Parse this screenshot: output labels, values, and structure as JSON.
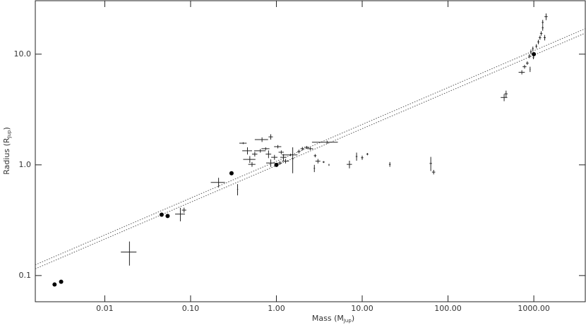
{
  "chart_data": {
    "type": "errorbar-scatter",
    "log_x": true,
    "log_y": true,
    "x_label": {
      "text": "Mass  (M",
      "sub": "Jup",
      "end": ")"
    },
    "y_label": {
      "text": "Radius  (R",
      "sub": "Jup",
      "end": ")"
    },
    "xlim": [
      0.00155,
      3980
    ],
    "ylim": [
      0.058,
      30.4
    ],
    "xticks": [
      {
        "value": 0.01,
        "label": "0.01"
      },
      {
        "value": 0.1,
        "label": "0.10"
      },
      {
        "value": 1,
        "label": "1.00"
      },
      {
        "value": 10,
        "label": "10.00"
      },
      {
        "value": 100,
        "label": "100.00"
      },
      {
        "value": 1000,
        "label": "1000.00"
      }
    ],
    "yticks": [
      {
        "value": 0.1,
        "label": "0.1"
      },
      {
        "value": 1,
        "label": "1.0"
      },
      {
        "value": 10,
        "label": "10.0"
      }
    ],
    "color": "#222222",
    "points": {
      "x": [
        0.0194,
        0.212,
        0.353,
        0.076,
        0.084,
        0.41,
        0.68,
        0.86,
        0.46,
        0.56,
        0.49,
        0.52,
        0.65,
        0.75,
        0.81,
        0.86,
        0.95,
        1.04,
        1.14,
        1.21,
        1.28,
        1.1,
        1.46,
        1.55,
        1.83,
        2.01,
        2.26,
        2.48,
        2.77,
        2.83,
        3.05,
        3.55,
        3.9,
        4.1,
        7.1,
        8.6,
        10.0,
        11.5,
        21,
        63,
        68,
        451,
        475,
        725,
        780,
        840,
        890,
        925,
        975,
        1070,
        1130,
        1180,
        1220,
        1270,
        1270,
        1340,
        1390,
        905,
        990
      ],
      "y": [
        0.163,
        0.694,
        0.6,
        0.359,
        0.39,
        1.57,
        1.69,
        1.79,
        1.34,
        1.25,
        1.12,
        1.01,
        1.34,
        1.4,
        1.25,
        1.04,
        1.17,
        1.46,
        1.3,
        1.17,
        1.08,
        1.04,
        1.23,
        1.14,
        1.32,
        1.4,
        1.44,
        1.4,
        0.93,
        1.21,
        1.08,
        1.06,
        1.6,
        1.0,
        1.01,
        1.19,
        1.16,
        1.25,
        1.01,
        1.03,
        0.86,
        4.06,
        4.38,
        6.86,
        7.7,
        8.3,
        9.6,
        10.5,
        11.2,
        11.8,
        12.9,
        14.1,
        15.4,
        17.3,
        19.4,
        14.1,
        21.8,
        7.3,
        9.3
      ],
      "xerr": [
        0.004,
        0.04,
        0.005,
        0.01,
        0.005,
        0.04,
        0.12,
        0.05,
        0.06,
        0.04,
        0.08,
        0.05,
        0.1,
        0.08,
        0.06,
        0.1,
        0.08,
        0.1,
        0.08,
        0.1,
        0.12,
        0.06,
        0.3,
        0.05,
        0.08,
        0.1,
        0.15,
        0.2,
        0.05,
        0.1,
        0.2,
        0.1,
        1.3,
        0.05,
        0.5,
        0.2,
        0.3,
        0.3,
        0.5,
        2,
        3,
        40,
        20,
        60,
        40,
        30,
        30,
        20,
        20,
        25,
        30,
        40,
        40,
        30,
        30,
        40,
        60,
        10,
        20
      ],
      "yerr": [
        0.04,
        0.07,
        0.07,
        0.05,
        0.02,
        0.03,
        0.08,
        0.1,
        0.1,
        0.06,
        0.08,
        0.05,
        0.05,
        0.04,
        0.1,
        0.08,
        0.06,
        0.05,
        0.05,
        0.08,
        0.05,
        0.04,
        0.03,
        0.3,
        0.05,
        0.05,
        0.04,
        0.04,
        0.07,
        0.04,
        0.05,
        0.02,
        0.05,
        0.02,
        0.08,
        0.1,
        0.05,
        0.03,
        0.05,
        0.15,
        0.04,
        0.3,
        0.3,
        0.3,
        0.3,
        0.3,
        0.4,
        0.5,
        0.5,
        0.5,
        0.6,
        0.6,
        0.7,
        1,
        1,
        0.8,
        1.5,
        0.4,
        0.3
      ]
    },
    "reference_points": {
      "x": [
        0.0026,
        0.0031,
        0.046,
        0.054,
        0.3,
        1.0,
        1000
      ],
      "y": [
        0.083,
        0.088,
        0.355,
        0.345,
        0.84,
        1.0,
        10
      ]
    },
    "model_lines": [
      {
        "x": [
          0.00155,
          3980
        ],
        "y": [
          0.125,
          17
        ]
      },
      {
        "x": [
          0.00155,
          3980
        ],
        "y": [
          0.115,
          15.5
        ]
      }
    ]
  }
}
